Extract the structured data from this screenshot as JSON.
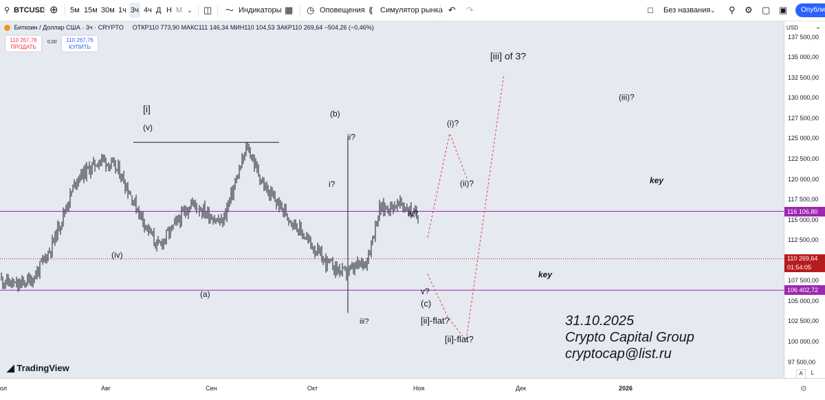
{
  "toolbar": {
    "symbol": "BTCUSD",
    "intervals": [
      "5м",
      "15м",
      "30м",
      "1ч",
      "3ч",
      "4ч",
      "Д",
      "Н",
      "М"
    ],
    "selected_interval": "3ч",
    "indicators_label": "Индикаторы",
    "alerts_label": "Оповещения",
    "replay_label": "Симулятор рынка",
    "layout_name": "Без названия",
    "publish_label": "Опублик"
  },
  "legend": {
    "title": "Биткоин / Доллар США · 3ч · CRYPTO",
    "open": "ОТКР110 773,90",
    "high": "МАКС111 146,34",
    "low": "МИН110 104,53",
    "close": "ЗАКР110 269,64",
    "change": "−504,26 (−0,46%)",
    "sell_price": "110 267,76",
    "sell_label": "ПРОДАТЬ",
    "spread": "0,00",
    "buy_price": "110 267,76",
    "buy_label": "КУПИТЬ"
  },
  "chart_data": {
    "type": "line",
    "currency": "USD",
    "x_ticks": [
      "ол",
      "Авг",
      "Сен",
      "Окт",
      "Ноя",
      "Дек",
      "2026"
    ],
    "y_ticks": [
      "137 500,00",
      "135 000,00",
      "132 500,00",
      "130 000,00",
      "127 500,00",
      "125 000,00",
      "122 500,00",
      "120 000,00",
      "117 500,00",
      "115 000,00",
      "112 500,00",
      "110 000,00",
      "107 500,00",
      "105 000,00",
      "102 500,00",
      "100 000,00",
      "97 500,00"
    ],
    "ylim": [
      95600,
      139500
    ],
    "price_path_x": [
      0,
      4,
      8,
      12,
      18,
      24,
      28,
      32,
      37,
      45,
      52,
      58,
      62,
      70,
      76,
      81,
      86,
      89,
      94,
      98
    ],
    "price_path_y": [
      107800,
      106900,
      108000,
      111700,
      120200,
      122600,
      121000,
      116600,
      111700,
      117200,
      114600,
      124100,
      119000,
      114000,
      110000,
      108400,
      110100,
      116400,
      117000,
      115400
    ],
    "horizontal_levels": [
      {
        "price": 116106.8,
        "label": "116 106,80"
      },
      {
        "price": 106402.72,
        "label": "106 402,72"
      }
    ],
    "last_price": {
      "price": 110269.64,
      "label": "110 269,64",
      "countdown": "01:54:05"
    },
    "annotations": [
      "[i]",
      "(v)",
      "(iv)",
      "(a)",
      "(b)",
      "ii?",
      "i?",
      "iii?",
      "iv?",
      "v?",
      "(c)",
      "(i)?",
      "(ii)?",
      "[ii]-flat?",
      "[ii]-flat?",
      "[iii] of 3?",
      "(iii)?",
      "key",
      "key"
    ],
    "signature": [
      "31.10.2025",
      "Crypto Capital Group",
      "cryptocap@list.ru"
    ]
  },
  "colors": {
    "level_line": "#9c27b0",
    "last_price": "#b71c1c",
    "background": "#e5e9f0",
    "candles": "#131722",
    "projection": "#e53935"
  },
  "logo": "TradingView"
}
